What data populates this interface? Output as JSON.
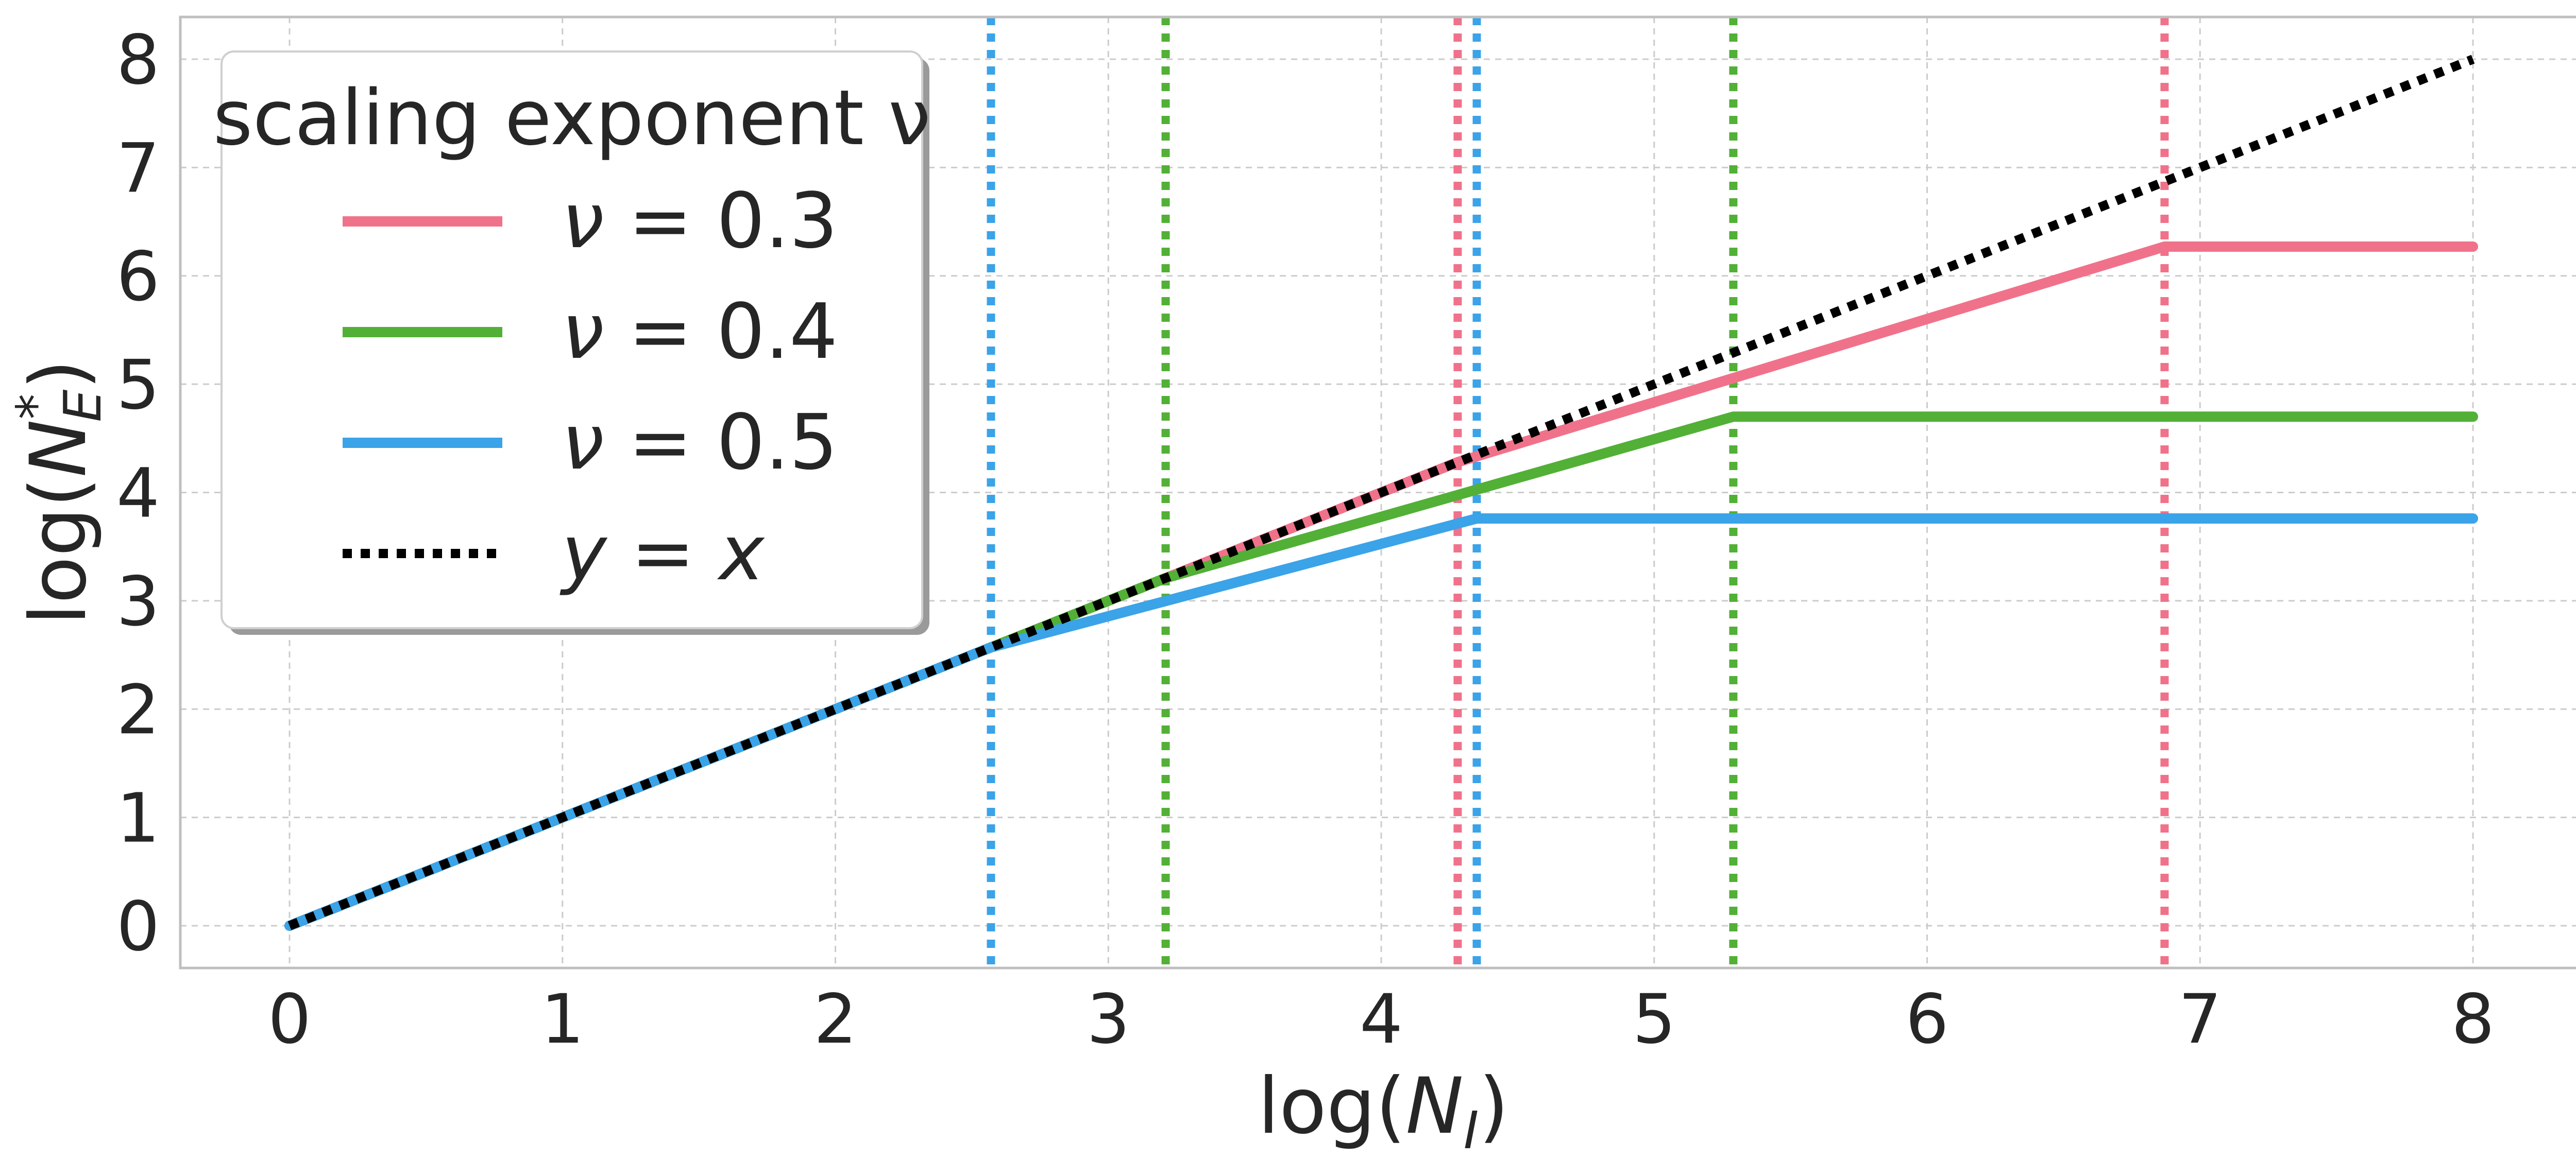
{
  "chart_data": {
    "type": "line",
    "title": "",
    "xlabel": "log(N_I)",
    "ylabel": "log(N_E*)",
    "xlim": [
      -0.4,
      8.4
    ],
    "ylim": [
      -0.4,
      8.4
    ],
    "xticks": [
      "0",
      "1",
      "2",
      "3",
      "4",
      "5",
      "6",
      "7",
      "8"
    ],
    "yticks": [
      "0",
      "1",
      "2",
      "3",
      "4",
      "5",
      "6",
      "7",
      "8"
    ],
    "grid": true,
    "legend": {
      "title": "scaling exponent ν",
      "position": "top-left"
    },
    "series": [
      {
        "name": "ν = 0.3",
        "greek": "ν",
        "eq": " = 0.3",
        "color": "#f0728a",
        "x": [
          0,
          4.28,
          6.87,
          8.0
        ],
        "y": [
          0,
          4.28,
          6.27,
          6.27
        ],
        "vlines": [
          4.28,
          6.87
        ]
      },
      {
        "name": "ν = 0.4",
        "greek": "ν",
        "eq": " = 0.4",
        "color": "#52b036",
        "x": [
          0,
          3.21,
          5.29,
          8.0
        ],
        "y": [
          0,
          3.21,
          4.7,
          4.7
        ],
        "vlines": [
          3.21,
          5.29
        ]
      },
      {
        "name": "ν = 0.5",
        "greek": "ν",
        "eq": " = 0.5",
        "color": "#3ba3e8",
        "x": [
          0,
          2.57,
          4.35,
          8.0
        ],
        "y": [
          0,
          2.57,
          3.76,
          3.76
        ],
        "vlines": [
          2.57,
          4.35
        ]
      },
      {
        "name": "y = x",
        "lhs": "y",
        "rel": " = ",
        "rhs": "x",
        "color": "#000000",
        "style": "dotted",
        "x": [
          0,
          8
        ],
        "y": [
          0,
          8
        ]
      }
    ]
  }
}
